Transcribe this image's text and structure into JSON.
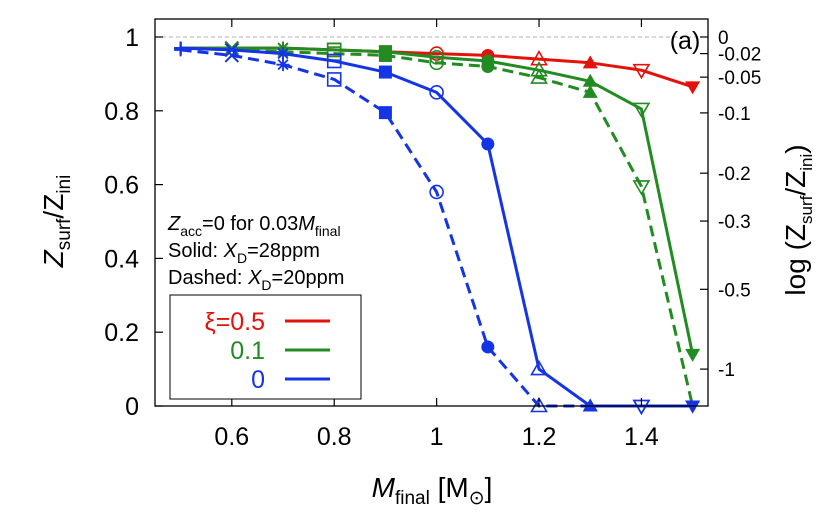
{
  "chart_data": {
    "type": "line",
    "panel_label": "(a)",
    "xlabel": {
      "main": "M",
      "sub": "final",
      "unit": "[M",
      "unit_close": "]"
    },
    "ylabel": {
      "main": "Z",
      "sub1": "surf",
      "sep": "/Z",
      "sub2": "ini"
    },
    "y2label": {
      "prefix": "log (Z",
      "sub1": "surf",
      "sep": "/Z",
      "sub2": "ini",
      "suffix": ")"
    },
    "xlim": [
      0.45,
      1.53
    ],
    "ylim": [
      0,
      1.0
    ],
    "xticks": [
      0.6,
      0.8,
      1.0,
      1.2,
      1.4
    ],
    "xtick_labels": [
      "0.6",
      "0.8",
      "1",
      "1.2",
      "1.4"
    ],
    "yticks": [
      0,
      0.2,
      0.4,
      0.6,
      0.8,
      1.0
    ],
    "ytick_labels": [
      "0",
      "0.2",
      "0.4",
      "0.6",
      "0.8",
      "1"
    ],
    "y2ticks": [
      0,
      -0.02,
      -0.05,
      -0.1,
      -0.2,
      -0.3,
      -0.5,
      -1
    ],
    "y2tick_labels": [
      "0",
      "-0.02",
      "-0.05",
      "-0.1",
      "-0.2",
      "-0.3",
      "-0.5",
      "-1"
    ],
    "reference_line": 1.0,
    "annotations": [
      {
        "parts": [
          {
            "t": "Z",
            "it": true
          },
          {
            "t": "acc",
            "sub": true
          },
          {
            "t": "=0 for 0.03"
          },
          {
            "t": "M",
            "it": true
          },
          {
            "t": "final",
            "sub": true
          }
        ]
      },
      {
        "parts": [
          {
            "t": "Solid: "
          },
          {
            "t": "X",
            "it": true
          },
          {
            "t": "D",
            "sub": true
          },
          {
            "t": "=28ppm"
          }
        ]
      },
      {
        "parts": [
          {
            "t": "Dashed: "
          },
          {
            "t": "X",
            "it": true
          },
          {
            "t": "D",
            "sub": true
          },
          {
            "t": "=20ppm"
          }
        ]
      }
    ],
    "legend": {
      "position": "lower-left",
      "entries": [
        {
          "label": "ξ=0.5",
          "color": "#e3120b"
        },
        {
          "label": "0.1",
          "color": "#228b22"
        },
        {
          "label": "0",
          "color": "#1434e6"
        }
      ]
    },
    "colors": {
      "xi_0.5": "#e3120b",
      "xi_0.1": "#228b22",
      "xi_0": "#1434e6",
      "reference": "#b0b0b0"
    },
    "series": [
      {
        "color": "#e3120b",
        "style": "solid",
        "x": [
          0.5,
          0.6,
          0.7,
          0.8,
          0.9,
          1.0,
          1.1,
          1.2,
          1.3,
          1.4,
          1.5
        ],
        "y": [
          0.97,
          0.97,
          0.97,
          0.965,
          0.96,
          0.955,
          0.95,
          0.94,
          0.93,
          0.91,
          0.865
        ],
        "markers": [
          "plus",
          "x",
          "star",
          "square-open",
          "square-filled",
          "circle-open",
          "circle-filled",
          "triangle-open",
          "triangle-filled",
          "triangle-down-open",
          "triangle-down-filled"
        ]
      },
      {
        "color": "#228b22",
        "style": "solid",
        "x": [
          0.5,
          0.6,
          0.7,
          0.8,
          0.9,
          1.0,
          1.1,
          1.2,
          1.3,
          1.4,
          1.5
        ],
        "y": [
          0.97,
          0.97,
          0.97,
          0.965,
          0.96,
          0.945,
          0.935,
          0.91,
          0.88,
          0.805,
          0.14
        ],
        "markers": [
          "plus",
          "x",
          "star",
          "square-open",
          "square-filled",
          "circle-open",
          "circle-filled",
          "triangle-open",
          "triangle-filled",
          "triangle-down-open",
          "triangle-down-filled"
        ]
      },
      {
        "color": "#228b22",
        "style": "dashed",
        "x": [
          0.5,
          0.6,
          0.7,
          0.8,
          0.9,
          1.0,
          1.1,
          1.2,
          1.3,
          1.4,
          1.5
        ],
        "y": [
          0.97,
          0.965,
          0.96,
          0.955,
          0.95,
          0.93,
          0.92,
          0.89,
          0.85,
          0.595,
          0.0
        ],
        "markers": [
          "plus",
          "x",
          "star",
          "square-open",
          "square-filled",
          "circle-open",
          "circle-filled",
          "triangle-open",
          "triangle-filled",
          "triangle-down-open",
          "triangle-down-filled"
        ]
      },
      {
        "color": "#1434e6",
        "style": "solid",
        "x": [
          0.5,
          0.6,
          0.7,
          0.8,
          0.9,
          1.0,
          1.1,
          1.2,
          1.3,
          1.4,
          1.5
        ],
        "y": [
          0.97,
          0.965,
          0.955,
          0.935,
          0.905,
          0.85,
          0.71,
          0.1,
          0.0,
          0.0,
          0.0
        ],
        "markers": [
          "plus",
          "x",
          "star",
          "square-open",
          "square-filled",
          "circle-open",
          "circle-filled",
          "triangle-open",
          "triangle-filled",
          "triangle-down-open",
          "triangle-down-filled"
        ]
      },
      {
        "color": "#1434e6",
        "style": "dashed",
        "x": [
          0.5,
          0.6,
          0.7,
          0.8,
          0.9,
          1.0,
          1.1,
          1.2,
          1.3,
          1.4,
          1.5
        ],
        "y": [
          0.965,
          0.95,
          0.925,
          0.885,
          0.795,
          0.58,
          0.16,
          0.0,
          0.0,
          0.0,
          0.0
        ],
        "markers": [
          "plus",
          "x",
          "star",
          "square-open",
          "square-filled",
          "circle-open",
          "circle-filled",
          "triangle-open",
          "triangle-filled",
          "triangle-down-open",
          "triangle-down-filled"
        ]
      }
    ]
  }
}
